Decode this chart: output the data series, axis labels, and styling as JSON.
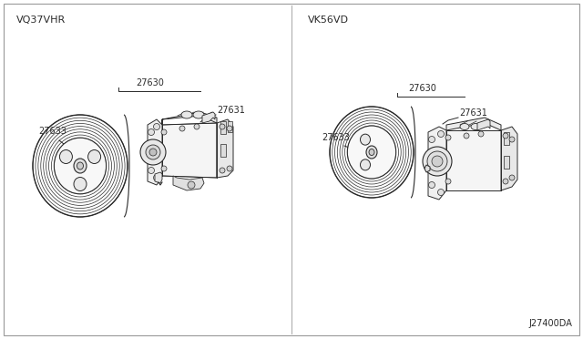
{
  "bg": "#ffffff",
  "lc": "#2a2a2a",
  "tc": "#2a2a2a",
  "left_label": "VQ37VHR",
  "right_label": "VK56VD",
  "bottom_label": "J27400DA",
  "label_fs": 8,
  "part_fs": 7
}
